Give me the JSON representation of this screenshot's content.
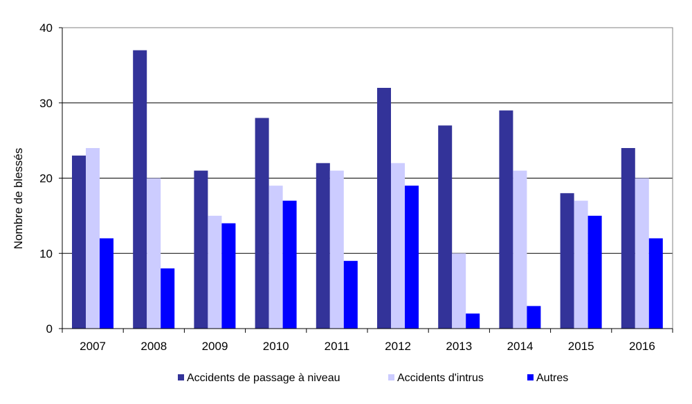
{
  "chart_data": {
    "type": "bar",
    "title": "",
    "xlabel": "",
    "ylabel": "Nombre de blessés",
    "ylim": [
      0,
      40
    ],
    "yticks": [
      "0",
      "10",
      "20",
      "30",
      "40"
    ],
    "grid": true,
    "legend_position": "bottom",
    "categories": [
      "2007",
      "2008",
      "2009",
      "2010",
      "2011",
      "2012",
      "2013",
      "2014",
      "2015",
      "2016"
    ],
    "series": [
      {
        "name": "Accidents de passage à niveau",
        "color": "#333399",
        "values": [
          23,
          37,
          21,
          28,
          22,
          32,
          27,
          29,
          18,
          24
        ]
      },
      {
        "name": "Accidents d'intrus",
        "color": "#ccccff",
        "values": [
          24,
          20,
          15,
          19,
          21,
          22,
          10,
          21,
          17,
          20
        ]
      },
      {
        "name": "Autres",
        "color": "#0000ff",
        "values": [
          12,
          8,
          14,
          17,
          9,
          19,
          2,
          3,
          15,
          12
        ]
      }
    ]
  }
}
